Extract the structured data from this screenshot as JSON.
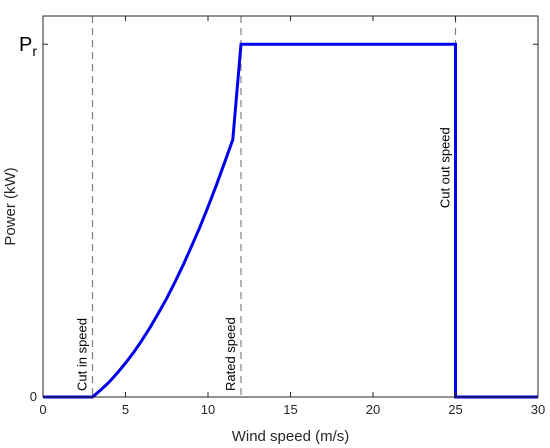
{
  "chart_data": {
    "type": "line",
    "xlabel": "Wind speed (m/s)",
    "ylabel": "Power (kW)",
    "xlim": [
      0,
      30
    ],
    "ylim": [
      0,
      1.08
    ],
    "x_ticks": [
      0,
      5,
      10,
      15,
      20,
      25,
      30
    ],
    "y_ticks": [
      {
        "value": 0,
        "label": "0"
      },
      {
        "value": 1,
        "label": "P",
        "subscript": "r"
      }
    ],
    "grid": false,
    "series": [
      {
        "color": "#0000ee",
        "x": [
          0,
          3,
          3.5,
          4,
          4.5,
          5,
          5.5,
          6,
          6.5,
          7,
          7.5,
          8,
          8.5,
          9,
          9.5,
          10,
          10.5,
          11,
          11.5,
          12,
          25,
          25,
          30
        ],
        "y": [
          0,
          0,
          0.02,
          0.042,
          0.068,
          0.096,
          0.127,
          0.161,
          0.198,
          0.238,
          0.28,
          0.326,
          0.375,
          0.427,
          0.481,
          0.539,
          0.6,
          0.664,
          0.73,
          1.0,
          1.0,
          0,
          0
        ]
      }
    ],
    "reference_lines": [
      {
        "x": 3,
        "label": "Cut in speed"
      },
      {
        "x": 12,
        "label": "Rated speed"
      },
      {
        "x": 25,
        "label": "Cut out speed"
      }
    ]
  }
}
